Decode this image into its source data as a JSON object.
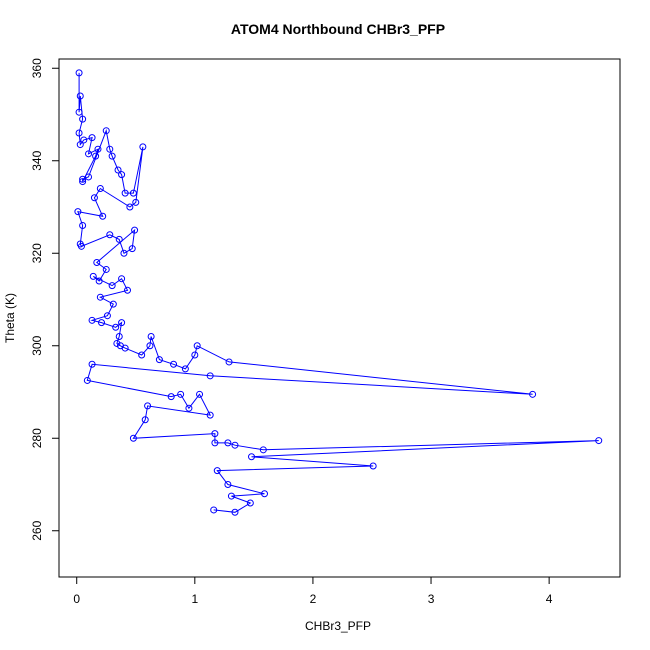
{
  "chart_data": {
    "type": "line",
    "title": "ATOM4 Northbound CHBr3_PFP",
    "xlabel": "CHBr3_PFP",
    "ylabel": "Theta (K)",
    "xlim": [
      -0.15,
      4.6
    ],
    "ylim": [
      250,
      362
    ],
    "x_ticks": [
      0,
      1,
      2,
      3,
      4
    ],
    "y_ticks": [
      260,
      280,
      300,
      320,
      340,
      360
    ],
    "grid": false,
    "markers": "open-circle",
    "colors": {
      "series": "#0000ff",
      "frame": "#000000"
    },
    "series": [
      {
        "values": [
          {
            "x": 0.02,
            "y": 359.0
          },
          {
            "x": 0.02,
            "y": 350.5
          },
          {
            "x": 0.03,
            "y": 354.0
          },
          {
            "x": 0.05,
            "y": 349.0
          },
          {
            "x": 0.02,
            "y": 346.0
          },
          {
            "x": 0.03,
            "y": 343.5
          },
          {
            "x": 0.06,
            "y": 344.5
          },
          {
            "x": 0.13,
            "y": 345.0
          },
          {
            "x": 0.1,
            "y": 341.5
          },
          {
            "x": 0.18,
            "y": 342.5
          },
          {
            "x": 0.16,
            "y": 341.0
          },
          {
            "x": 0.05,
            "y": 335.5
          },
          {
            "x": 0.05,
            "y": 336.0
          },
          {
            "x": 0.1,
            "y": 336.5
          },
          {
            "x": 0.25,
            "y": 346.5
          },
          {
            "x": 0.28,
            "y": 342.5
          },
          {
            "x": 0.3,
            "y": 341.0
          },
          {
            "x": 0.35,
            "y": 338.0
          },
          {
            "x": 0.38,
            "y": 337.0
          },
          {
            "x": 0.41,
            "y": 333.0
          },
          {
            "x": 0.48,
            "y": 333.0
          },
          {
            "x": 0.56,
            "y": 343.0
          },
          {
            "x": 0.5,
            "y": 331.0
          },
          {
            "x": 0.45,
            "y": 330.0
          },
          {
            "x": 0.2,
            "y": 334.0
          },
          {
            "x": 0.15,
            "y": 332.0
          },
          {
            "x": 0.22,
            "y": 328.0
          },
          {
            "x": 0.01,
            "y": 329.0
          },
          {
            "x": 0.05,
            "y": 326.0
          },
          {
            "x": 0.03,
            "y": 322.0
          },
          {
            "x": 0.04,
            "y": 321.5
          },
          {
            "x": 0.28,
            "y": 324.0
          },
          {
            "x": 0.36,
            "y": 323.0
          },
          {
            "x": 0.4,
            "y": 320.0
          },
          {
            "x": 0.47,
            "y": 321.0
          },
          {
            "x": 0.49,
            "y": 325.0
          },
          {
            "x": 0.17,
            "y": 318.0
          },
          {
            "x": 0.25,
            "y": 316.5
          },
          {
            "x": 0.19,
            "y": 314.0
          },
          {
            "x": 0.14,
            "y": 315.0
          },
          {
            "x": 0.3,
            "y": 313.0
          },
          {
            "x": 0.38,
            "y": 314.5
          },
          {
            "x": 0.43,
            "y": 312.0
          },
          {
            "x": 0.2,
            "y": 310.5
          },
          {
            "x": 0.31,
            "y": 309.0
          },
          {
            "x": 0.26,
            "y": 306.5
          },
          {
            "x": 0.13,
            "y": 305.5
          },
          {
            "x": 0.21,
            "y": 305.0
          },
          {
            "x": 0.33,
            "y": 304.0
          },
          {
            "x": 0.38,
            "y": 305.0
          },
          {
            "x": 0.36,
            "y": 302.0
          },
          {
            "x": 0.34,
            "y": 300.5
          },
          {
            "x": 0.37,
            "y": 300.0
          },
          {
            "x": 0.41,
            "y": 299.5
          },
          {
            "x": 0.55,
            "y": 298.0
          },
          {
            "x": 0.62,
            "y": 300.0
          },
          {
            "x": 0.63,
            "y": 302.0
          },
          {
            "x": 0.7,
            "y": 297.0
          },
          {
            "x": 0.82,
            "y": 296.0
          },
          {
            "x": 0.92,
            "y": 295.0
          },
          {
            "x": 1.0,
            "y": 298.0
          },
          {
            "x": 1.02,
            "y": 300.0
          },
          {
            "x": 1.29,
            "y": 296.5
          },
          {
            "x": 3.86,
            "y": 289.5
          },
          {
            "x": 1.13,
            "y": 293.5
          },
          {
            "x": 0.13,
            "y": 296.0
          },
          {
            "x": 0.09,
            "y": 292.5
          },
          {
            "x": 0.8,
            "y": 289.0
          },
          {
            "x": 0.88,
            "y": 289.5
          },
          {
            "x": 0.95,
            "y": 286.5
          },
          {
            "x": 1.04,
            "y": 289.5
          },
          {
            "x": 1.13,
            "y": 285.0
          },
          {
            "x": 0.6,
            "y": 287.0
          },
          {
            "x": 0.58,
            "y": 284.0
          },
          {
            "x": 0.48,
            "y": 280.0
          },
          {
            "x": 1.17,
            "y": 281.0
          },
          {
            "x": 1.17,
            "y": 279.0
          },
          {
            "x": 1.28,
            "y": 279.0
          },
          {
            "x": 1.34,
            "y": 278.5
          },
          {
            "x": 1.58,
            "y": 277.5
          },
          {
            "x": 4.42,
            "y": 279.5
          },
          {
            "x": 1.48,
            "y": 276.0
          },
          {
            "x": 2.51,
            "y": 274.0
          },
          {
            "x": 1.19,
            "y": 273.0
          },
          {
            "x": 1.28,
            "y": 270.0
          },
          {
            "x": 1.59,
            "y": 268.0
          },
          {
            "x": 1.31,
            "y": 267.5
          },
          {
            "x": 1.47,
            "y": 266.0
          },
          {
            "x": 1.34,
            "y": 264.0
          },
          {
            "x": 1.16,
            "y": 264.5
          }
        ]
      }
    ]
  }
}
